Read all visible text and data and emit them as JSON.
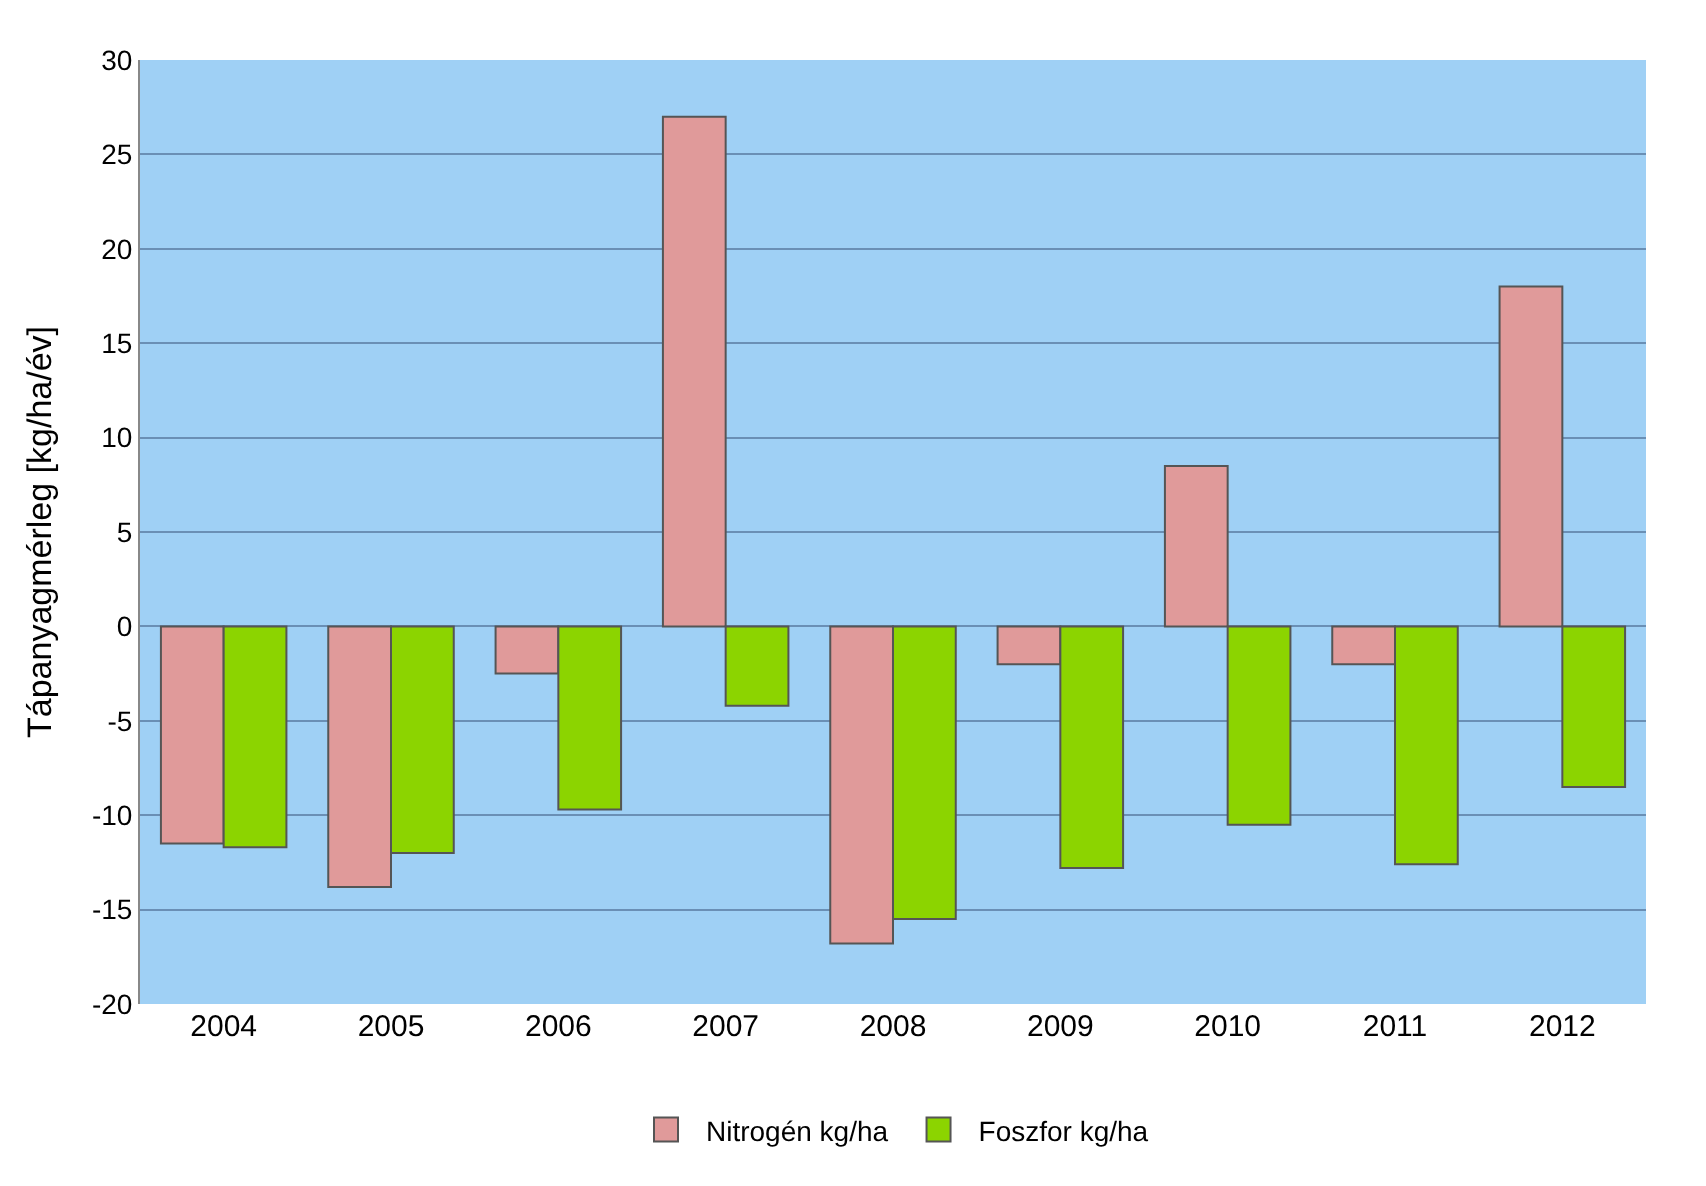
{
  "chart_data": {
    "type": "bar",
    "ylabel": "Tápanyagmérleg [kg/ha/év]",
    "categories": [
      "2004",
      "2005",
      "2006",
      "2007",
      "2008",
      "2009",
      "2010",
      "2011",
      "2012"
    ],
    "series": [
      {
        "name": "Nitrogén kg/ha",
        "color": "#e09a9a",
        "values": [
          -11.5,
          -13.8,
          -2.5,
          27,
          -16.8,
          -2,
          8.5,
          -2,
          18
        ]
      },
      {
        "name": "Foszfor kg/ha",
        "color": "#8cd400",
        "values": [
          -11.7,
          -12,
          -9.7,
          -4.2,
          -15.5,
          -12.8,
          -10.5,
          -12.6,
          -8.5
        ]
      }
    ],
    "ylim": [
      -20,
      30
    ],
    "yticks": [
      -20,
      -15,
      -10,
      -5,
      0,
      5,
      10,
      15,
      20,
      25,
      30
    ],
    "grid": "y",
    "legend": "bottom"
  }
}
